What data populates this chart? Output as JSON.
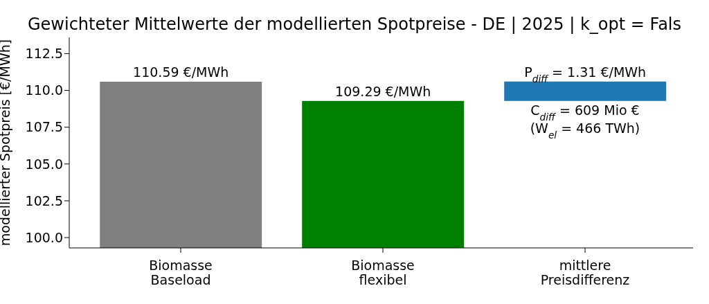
{
  "chart_data": {
    "type": "bar",
    "title": "Gewichteter Mittelwerte der modellierten Spotpreise - DE | 2025 | k_opt = Fals",
    "ylabel": "modellierter Spotpreis [€/MWh]",
    "categories": [
      "Biomasse\nBaseload",
      "Biomasse\nflexibel",
      "mittlere\nPreisdifferenz"
    ],
    "values": [
      110.59,
      109.29,
      1.31
    ],
    "base": [
      null,
      null,
      109.29
    ],
    "colors": [
      "#808080",
      "#008000",
      "#1f77b4"
    ],
    "value_labels": [
      "110.59 €/MWh",
      "109.29 €/MWh",
      "P$_{diff}$ = 1.31 €/MWh"
    ],
    "annotations": [
      "C$_{diff}$ = 609 Mio €",
      "(W$_{el}$ = 466 TWh)"
    ],
    "ylim": [
      99.3,
      113.6
    ],
    "yticks": [
      {
        "value": 100,
        "label": "100.0"
      },
      102.5,
      {
        "value": 105,
        "label": "105.0"
      },
      107.5,
      {
        "value": 110,
        "label": "110.0"
      },
      112.5
    ],
    "grid": false,
    "legend": false
  }
}
